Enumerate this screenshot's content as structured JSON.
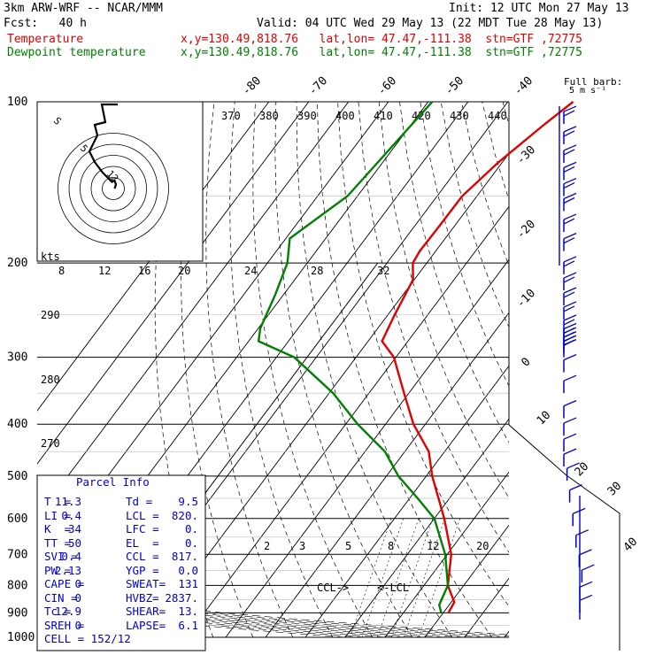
{
  "header": {
    "model": "3km ARW-WRF -- NCAR/MMM",
    "init": "Init: 12 UTC Mon 27 May 13",
    "fcst": "Fcst:   40 h",
    "valid": "Valid: 04 UTC Wed 29 May 13 (22 MDT Tue 28 May 13)",
    "temp_label": "Temperature",
    "dew_label": "Dewpoint temperature",
    "temp_loc": "x,y=130.49,818.76   lat,lon= 47.47,-111.38  stn=GTF ,72775",
    "dew_loc": "x,y=130.49,818.76   lat,lon= 47.47,-111.38  stn=GTF ,72775"
  },
  "colors": {
    "temperature": "#e00000",
    "dewpoint": "#008000",
    "parcel_text": "#0000cc",
    "hodograph": "#000000"
  },
  "barb_legend": {
    "title": "Full barb:",
    "value": "5 m s⁻¹"
  },
  "chart_data": {
    "type": "skew-t log-p",
    "y_axis": {
      "label_values": [
        100,
        200,
        300,
        400,
        500,
        600,
        700,
        800,
        900,
        1000
      ],
      "units": "hPa",
      "scale": "log"
    },
    "temperature_ticks": [
      -80,
      -70,
      -60,
      -50,
      -40,
      -30,
      -20,
      -10,
      0,
      10,
      20,
      30,
      40
    ],
    "theta_e_labels": [
      370,
      380,
      390,
      400,
      410,
      420,
      430,
      440
    ],
    "theta_labels": [
      290,
      280,
      270
    ],
    "mixing_ratio_labels": [
      "2",
      "3",
      "5",
      "8",
      "12",
      "20"
    ],
    "series": [
      {
        "name": "Temperature",
        "points": [
          [
            100,
            -53.6
          ],
          [
            110,
            -56.5
          ],
          [
            130,
            -61
          ],
          [
            150,
            -63.7
          ],
          [
            170,
            -63.8
          ],
          [
            190,
            -64
          ],
          [
            200,
            -63.5
          ],
          [
            215,
            -60.3
          ],
          [
            250,
            -58.3
          ],
          [
            280,
            -56.5
          ],
          [
            300,
            -50.5
          ],
          [
            350,
            -41.2
          ],
          [
            400,
            -33
          ],
          [
            450,
            -24
          ],
          [
            500,
            -18.5
          ],
          [
            600,
            -7.5
          ],
          [
            700,
            1
          ],
          [
            800,
            6
          ],
          [
            860,
            10.8
          ],
          [
            900,
            11.3
          ]
        ]
      },
      {
        "name": "Dewpoint temperature",
        "points": [
          [
            100,
            -89
          ],
          [
            150,
            -92.5
          ],
          [
            180,
            -99
          ],
          [
            200,
            -95
          ],
          [
            230,
            -92
          ],
          [
            265,
            -89.5
          ],
          [
            280,
            -87.5
          ],
          [
            300,
            -75.5
          ],
          [
            350,
            -59
          ],
          [
            400,
            -47
          ],
          [
            450,
            -35
          ],
          [
            500,
            -27
          ],
          [
            550,
            -18
          ],
          [
            600,
            -10
          ],
          [
            700,
            -0.5
          ],
          [
            800,
            6
          ],
          [
            870,
            7.5
          ],
          [
            900,
            9.5
          ]
        ]
      }
    ],
    "wind_barbs_pressures": [
      110,
      120,
      130,
      140,
      150,
      160,
      175,
      190,
      210,
      225,
      240,
      255,
      270,
      280,
      285,
      290,
      295,
      300,
      320,
      350,
      390,
      420,
      450,
      480,
      510,
      560,
      620,
      680,
      740,
      790,
      850,
      900
    ],
    "hodograph": {
      "units": "kts",
      "ring_labels": [
        "8",
        "12",
        "16",
        "20",
        "24",
        "28",
        "32"
      ],
      "inner_labels": [
        "12",
        "5",
        "S"
      ],
      "speed_ring_values": [
        10,
        20,
        30,
        40,
        50
      ],
      "trace": [
        [
          1,
          0
        ],
        [
          2,
          3
        ],
        [
          1,
          6
        ],
        [
          -1,
          5
        ],
        [
          -4,
          8
        ],
        [
          -8,
          12
        ],
        [
          -14,
          20
        ],
        [
          -18,
          28
        ],
        [
          -12,
          40
        ],
        [
          -14,
          48
        ],
        [
          -6,
          50
        ]
      ]
    },
    "annotations": {
      "ccl": "CCL->",
      "lcl": "<-LCL"
    },
    "parcel_info": {
      "title": "Parcel Info",
      "rows": [
        [
          "T  =",
          "11.3",
          "Td =",
          "9.5"
        ],
        [
          "LI =",
          "0.4",
          "LCL =",
          "820."
        ],
        [
          "K  =",
          "34",
          "LFC =",
          "0."
        ],
        [
          "TT =",
          "50",
          "EL  =",
          "0."
        ],
        [
          "SVI =",
          "0.4",
          "CCL =",
          "817."
        ],
        [
          "PW =",
          "2.13",
          "YGP =",
          "0.0"
        ],
        [
          "CAPE =",
          "0",
          "SWEAT=",
          "131"
        ],
        [
          "CIN =",
          "0",
          "HVBZ=",
          "2837."
        ],
        [
          "Tc =",
          "12.9",
          "SHEAR=",
          "13."
        ],
        [
          "SREH =",
          "0",
          "LAPSE=",
          "6.1"
        ],
        [
          "CELL = 152/12",
          "",
          "",
          ""
        ]
      ]
    }
  }
}
